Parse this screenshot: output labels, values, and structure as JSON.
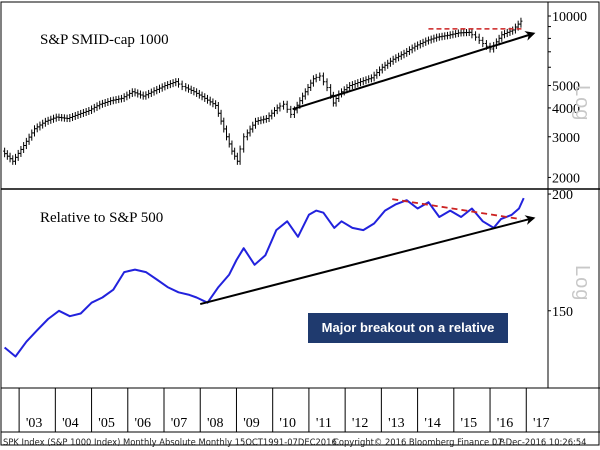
{
  "chart_data": [
    {
      "type": "line",
      "style": "ohlc-bars",
      "title": "S&P SMID-cap 1000",
      "scale": "log",
      "scale_label": "Log",
      "yticks": [
        2000,
        3000,
        4000,
        5000,
        10000
      ],
      "ytick_labels": [
        "2000",
        "3000",
        "4000",
        "5000",
        "10000"
      ],
      "ylim": [
        1800,
        11500
      ],
      "series": [
        {
          "color": "#000000",
          "x": [
            2002.6,
            2002.9,
            2003.2,
            2003.5,
            2003.8,
            2004.1,
            2004.4,
            2004.7,
            2005.0,
            2005.3,
            2005.6,
            2005.9,
            2006.2,
            2006.5,
            2006.8,
            2007.1,
            2007.4,
            2007.6,
            2007.9,
            2008.2,
            2008.5,
            2008.8,
            2008.95,
            2009.1,
            2009.3,
            2009.6,
            2009.9,
            2010.2,
            2010.4,
            2010.6,
            2010.9,
            2011.2,
            2011.4,
            2011.6,
            2011.75,
            2011.9,
            2012.2,
            2012.5,
            2012.8,
            2013.1,
            2013.4,
            2013.7,
            2014.0,
            2014.3,
            2014.6,
            2014.9,
            2015.2,
            2015.5,
            2015.7,
            2015.9,
            2016.1,
            2016.4,
            2016.7,
            2016.93
          ],
          "values": [
            2600,
            2350,
            2750,
            3250,
            3500,
            3650,
            3600,
            3750,
            3900,
            4150,
            4300,
            4400,
            4700,
            4500,
            4750,
            5000,
            5200,
            4950,
            4700,
            4400,
            4100,
            3000,
            2600,
            2350,
            3000,
            3500,
            3600,
            4000,
            4150,
            3750,
            4500,
            5350,
            5500,
            4900,
            4200,
            4600,
            5000,
            5200,
            5400,
            6000,
            6500,
            6900,
            7400,
            7800,
            8100,
            8250,
            8450,
            8500,
            8100,
            7600,
            7200,
            8300,
            8700,
            9500
          ]
        }
      ],
      "annotations": [
        {
          "type": "trendline",
          "from": [
            2010.55,
            3950
          ],
          "to": [
            2017.2,
            8400
          ],
          "arrow": true
        },
        {
          "type": "resistance",
          "style": "dashed",
          "level": 8800,
          "from": 2014.3,
          "to": 2016.95
        }
      ]
    },
    {
      "type": "line",
      "title": "Relative to S&P 500",
      "scale": "log",
      "scale_label": "Log",
      "yticks": [
        150,
        200
      ],
      "ytick_labels": [
        "150",
        "200"
      ],
      "ylim": [
        124,
        202
      ],
      "series": [
        {
          "color": "#2222dd",
          "x": [
            2002.6,
            2002.9,
            2003.2,
            2003.5,
            2003.8,
            2004.1,
            2004.4,
            2004.7,
            2005.0,
            2005.3,
            2005.6,
            2005.9,
            2006.2,
            2006.5,
            2006.8,
            2007.1,
            2007.4,
            2007.7,
            2007.9,
            2008.2,
            2008.5,
            2008.8,
            2009.0,
            2009.2,
            2009.5,
            2009.8,
            2010.1,
            2010.4,
            2010.7,
            2011.0,
            2011.2,
            2011.4,
            2011.7,
            2011.9,
            2012.2,
            2012.5,
            2012.8,
            2013.1,
            2013.4,
            2013.7,
            2014.0,
            2014.3,
            2014.6,
            2014.9,
            2015.2,
            2015.5,
            2015.8,
            2016.1,
            2016.3,
            2016.6,
            2016.8,
            2016.93
          ],
          "values": [
            137,
            134,
            139,
            143,
            147,
            150,
            148,
            149,
            153,
            155,
            158,
            165,
            166,
            165,
            162,
            159,
            157,
            156,
            155,
            153,
            159,
            164,
            170,
            175,
            168,
            172,
            183,
            187,
            180,
            190,
            192,
            191,
            184,
            187,
            184,
            183,
            186,
            192,
            195,
            197,
            193,
            196,
            189,
            192,
            189,
            193,
            187,
            184,
            188,
            190,
            193,
            198
          ]
        }
      ],
      "annotations": [
        {
          "type": "trendline",
          "from": [
            2008.0,
            152.5
          ],
          "to": [
            2017.2,
            188.5
          ],
          "arrow": true
        },
        {
          "type": "resistance",
          "style": "dashed",
          "from": [
            2013.3,
            197.5
          ],
          "to": [
            2016.85,
            188
          ]
        },
        {
          "type": "callout",
          "text": "Major breakout on a relative basis"
        }
      ]
    }
  ],
  "x_axis": {
    "tick_labels": [
      "'03",
      "'04",
      "'05",
      "'06",
      "'07",
      "'08",
      "'09",
      "'10",
      "'11",
      "'12",
      "'13",
      "'14",
      "'15",
      "'16",
      "'17"
    ],
    "tick_years": [
      2003,
      2004,
      2005,
      2006,
      2007,
      2008,
      2009,
      2010,
      2011,
      2012,
      2013,
      2014,
      2015,
      2016,
      2017
    ],
    "xlim": [
      2002.5,
      2017.6
    ]
  },
  "footer": {
    "left": "SPK Index (S&P 1000 Index) Monthly Absolute  Monthly 15OCT1991-07DEC2016",
    "center": "Copyright© 2016 Bloomberg Finance L.P.",
    "right": "07-Dec-2016 10:26:54"
  },
  "colors": {
    "line_relative": "#2222dd",
    "bars": "#000000",
    "dashed": "#cc2222",
    "callout_bg": "#1f3a6e",
    "callout_text": "#ffffff",
    "scale_label": "#c8c8c8"
  }
}
